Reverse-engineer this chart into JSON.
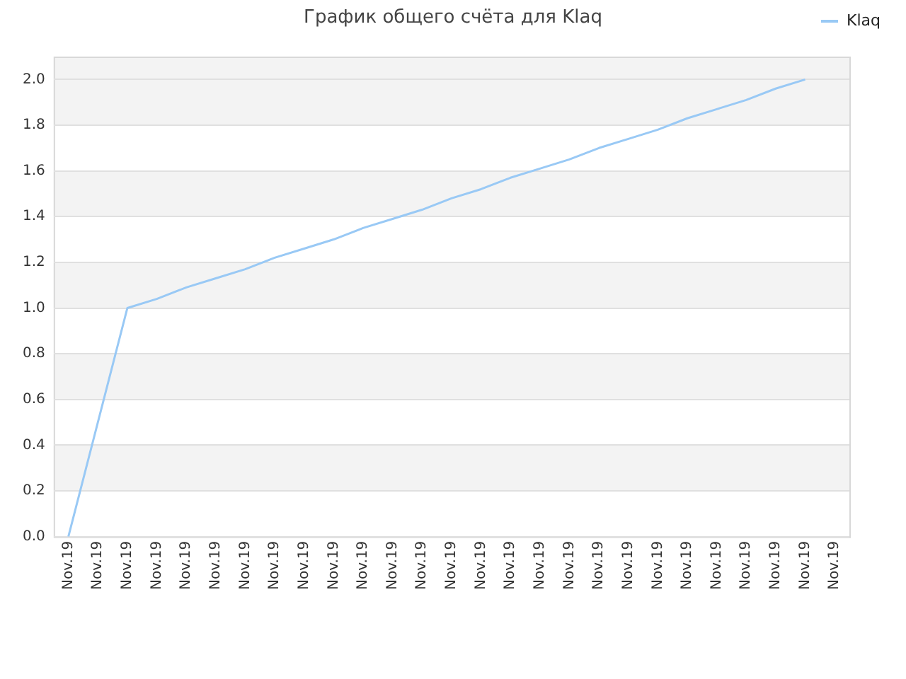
{
  "chart_data": {
    "type": "line",
    "title": "График общего счёта для Klaq",
    "categories": [
      "Nov.19",
      "Nov.19",
      "Nov.19",
      "Nov.19",
      "Nov.19",
      "Nov.19",
      "Nov.19",
      "Nov.19",
      "Nov.19",
      "Nov.19",
      "Nov.19",
      "Nov.19",
      "Nov.19",
      "Nov.19",
      "Nov.19",
      "Nov.19",
      "Nov.19",
      "Nov.19",
      "Nov.19",
      "Nov.19",
      "Nov.19",
      "Nov.19",
      "Nov.19",
      "Nov.19",
      "Nov.19",
      "Nov.19",
      "Nov.19"
    ],
    "series": [
      {
        "name": "Klaq",
        "color": "#99c9f5",
        "values": [
          0,
          0.5,
          1.0,
          1.04,
          1.09,
          1.13,
          1.17,
          1.22,
          1.26,
          1.3,
          1.35,
          1.39,
          1.43,
          1.48,
          1.52,
          1.57,
          1.61,
          1.65,
          1.7,
          1.74,
          1.78,
          1.83,
          1.87,
          1.91,
          1.96,
          2.0,
          null
        ]
      }
    ],
    "ylim": [
      0,
      2.1
    ],
    "yticks": [
      {
        "value": 0,
        "label": "0.0"
      },
      0.2,
      0.4,
      0.6,
      0.8,
      {
        "value": 1,
        "label": "1.0"
      },
      1.2,
      1.4,
      1.6,
      1.8,
      {
        "value": 2,
        "label": "2.0"
      }
    ],
    "grid": "y",
    "legend": "top right",
    "marker": "none",
    "line_style": "solid"
  }
}
